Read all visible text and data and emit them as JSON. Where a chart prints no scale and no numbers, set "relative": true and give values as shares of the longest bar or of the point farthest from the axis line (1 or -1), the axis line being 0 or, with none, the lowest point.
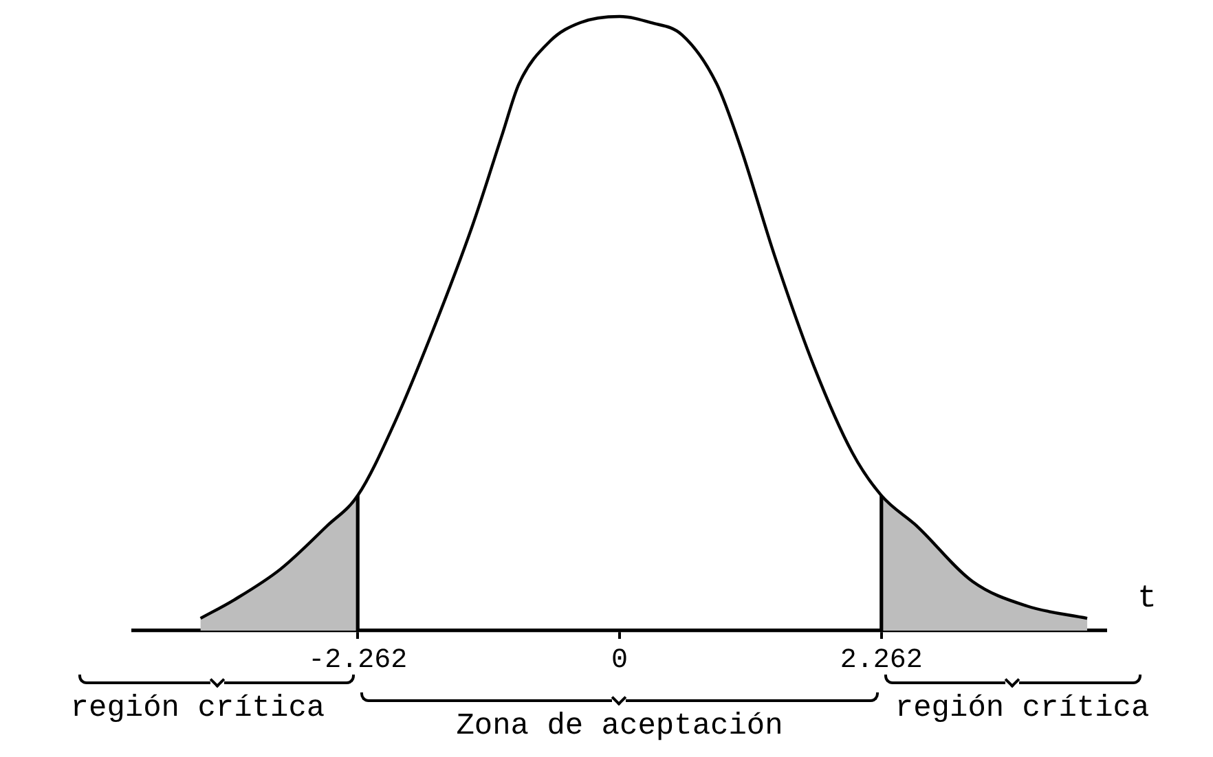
{
  "chart_data": {
    "type": "line",
    "xlabel": "t",
    "relative": true,
    "marker": "none",
    "x": [
      -3.62,
      -3.33,
      -2.93,
      -2.53,
      -2.262,
      -1.94,
      -1.61,
      -1.27,
      -1.01,
      -0.87,
      -0.6,
      -0.34,
      0,
      0.27,
      0.54,
      0.84,
      1.04,
      1.34,
      1.68,
      2.01,
      2.262,
      2.57,
      3.05,
      3.52,
      4.04
    ],
    "series": [
      {
        "color": "#000000",
        "values": [
          0.02,
          0.05,
          0.1,
          0.17,
          0.22,
          0.34,
          0.49,
          0.66,
          0.81,
          0.89,
          0.96,
          0.99,
          1,
          0.99,
          0.97,
          0.89,
          0.79,
          0.61,
          0.43,
          0.29,
          0.22,
          0.17,
          0.08,
          0.04,
          0.02
        ]
      }
    ],
    "xlim": [
      -4.2,
      4.2
    ],
    "xticks": [
      -2.262,
      0,
      2.262
    ],
    "bands": [
      {
        "axis": "x",
        "from": -4.2,
        "to": -2.262,
        "label": "región crítica",
        "color": "#bdbdbd"
      },
      {
        "axis": "x",
        "from": 2.262,
        "to": 4.2,
        "label": "región crítica",
        "color": "#bdbdbd"
      }
    ],
    "annotations": [
      "Zona de aceptación"
    ]
  }
}
